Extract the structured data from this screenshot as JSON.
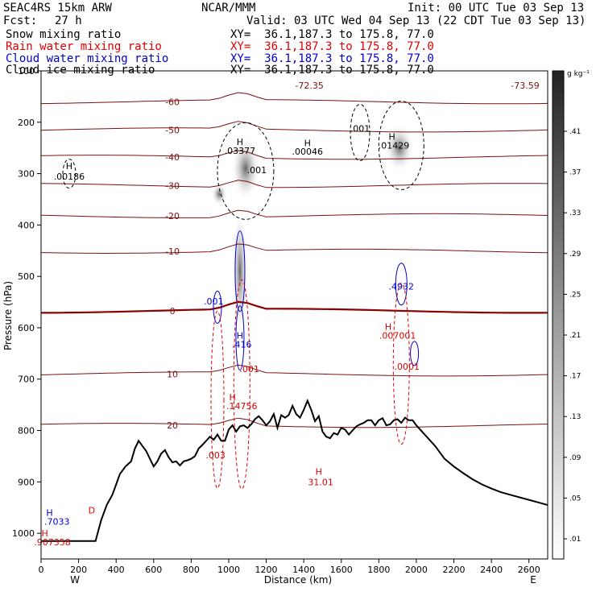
{
  "header": {
    "model": "SEAC4RS 15km ARW",
    "center": "NCAR/MMM",
    "init": "Init: 00 UTC Tue 03 Sep 13",
    "fcst_label": "Fcst:",
    "fcst_value": "27 h",
    "valid": "Valid: 03 UTC Wed 04 Sep 13 (22 CDT Tue 03 Sep 13)",
    "fields": [
      {
        "name": "Snow mixing ratio",
        "xy": "XY=  36.1,187.3 to 175.8, 77.0",
        "color": "#000000"
      },
      {
        "name": "Rain water mixing ratio",
        "xy": "XY=  36.1,187.3 to 175.8, 77.0",
        "color": "#e00000"
      },
      {
        "name": "Cloud water mixing ratio",
        "xy": "XY=  36.1,187.3 to 175.8, 77.0",
        "color": "#0000c8"
      },
      {
        "name": "Cloud ice mixing ratio",
        "xy": "XY=  36.1,187.3 to 175.8, 77.0",
        "color": "#000000"
      }
    ]
  },
  "colors": {
    "temperature": "#7a1010",
    "freezing_line": "#8b0000",
    "rain": "#e00000",
    "cloud_water": "#0000c8",
    "terrain": "#000000"
  },
  "chart_data": {
    "type": "line",
    "xlabel": "Distance (km)",
    "ylabel": "Pressure (hPa)",
    "xlim": [
      0,
      2700
    ],
    "ylim": [
      1050,
      100
    ],
    "xticks": [
      "0",
      "200",
      "400",
      "600",
      "800",
      "1000",
      "1200",
      "1400",
      "1600",
      "1800",
      "2000",
      "2200",
      "2400",
      "2600"
    ],
    "yticks": [
      "1000",
      "900",
      "800",
      "700",
      "600",
      "500",
      "400",
      "300",
      "200",
      "100"
    ],
    "x_end_labels": {
      "left": "W",
      "right": "E"
    },
    "colorbar": {
      "unit": "g kg⁻¹",
      "ticks": [
        ".41",
        ".37",
        ".33",
        ".29",
        ".25",
        ".21",
        ".17",
        ".13",
        ".09",
        ".05",
        ".01"
      ]
    },
    "terrain": {
      "x": [
        0,
        50,
        100,
        150,
        200,
        250,
        290,
        320,
        350,
        380,
        400,
        420,
        450,
        480,
        500,
        520,
        540,
        560,
        580,
        600,
        620,
        640,
        660,
        680,
        700,
        720,
        740,
        760,
        780,
        800,
        820,
        840,
        860,
        880,
        900,
        920,
        940,
        960,
        980,
        1000,
        1020,
        1040,
        1060,
        1080,
        1100,
        1120,
        1140,
        1160,
        1180,
        1200,
        1220,
        1240,
        1260,
        1280,
        1300,
        1320,
        1340,
        1360,
        1380,
        1400,
        1420,
        1440,
        1460,
        1480,
        1500,
        1520,
        1540,
        1560,
        1580,
        1600,
        1620,
        1640,
        1660,
        1680,
        1700,
        1720,
        1740,
        1760,
        1780,
        1800,
        1820,
        1840,
        1860,
        1880,
        1900,
        1920,
        1940,
        1960,
        1980,
        2000,
        2050,
        2100,
        2150,
        2200,
        2250,
        2300,
        2350,
        2400,
        2450,
        2500,
        2550,
        2600,
        2650,
        2700
      ],
      "p": [
        1015,
        1015,
        1015,
        1015,
        1015,
        1015,
        1015,
        975,
        945,
        925,
        905,
        885,
        870,
        860,
        835,
        820,
        830,
        840,
        855,
        870,
        860,
        845,
        838,
        852,
        862,
        860,
        868,
        860,
        858,
        855,
        850,
        835,
        828,
        820,
        812,
        818,
        808,
        820,
        820,
        798,
        790,
        802,
        792,
        790,
        795,
        788,
        778,
        772,
        780,
        790,
        782,
        768,
        795,
        770,
        775,
        770,
        752,
        768,
        775,
        760,
        742,
        760,
        782,
        772,
        802,
        812,
        815,
        805,
        808,
        795,
        798,
        808,
        800,
        792,
        788,
        785,
        780,
        780,
        790,
        780,
        776,
        790,
        788,
        780,
        778,
        785,
        775,
        780,
        780,
        790,
        810,
        830,
        855,
        870,
        883,
        895,
        905,
        913,
        920,
        925,
        930,
        935,
        940,
        945
      ]
    },
    "temperature_levels": [
      {
        "label": "-72.35",
        "p": 128
      },
      {
        "label": "-73.59",
        "p": 128
      },
      {
        "label": "-60",
        "p": 160
      },
      {
        "label": "-50",
        "p": 215
      },
      {
        "label": "-40",
        "p": 268
      },
      {
        "label": "-30",
        "p": 323
      },
      {
        "label": "-20",
        "p": 382
      },
      {
        "label": "-10",
        "p": 451
      },
      {
        "label": "0",
        "p": 567
      },
      {
        "label": "10",
        "p": 690
      },
      {
        "label": "20",
        "p": 790
      }
    ],
    "labels": [
      {
        "text": "H",
        "x": 150,
        "p": 285,
        "color": "#000000"
      },
      {
        "text": ".00186",
        "x": 150,
        "p": 305,
        "color": "#000000"
      },
      {
        "text": "H",
        "x": 1060,
        "p": 238,
        "color": "#000000"
      },
      {
        "text": ".03377",
        "x": 1060,
        "p": 255,
        "color": "#000000"
      },
      {
        "text": "H",
        "x": 1420,
        "p": 240,
        "color": "#000000"
      },
      {
        "text": ".00046",
        "x": 1420,
        "p": 257,
        "color": "#000000"
      },
      {
        "text": "H",
        "x": 1870,
        "p": 228,
        "color": "#000000"
      },
      {
        "text": ".01429",
        "x": 1880,
        "p": 245,
        "color": "#000000"
      },
      {
        "text": ".001",
        "x": 1150,
        "p": 293,
        "color": "#000000"
      },
      {
        "text": ".001",
        "x": 1700,
        "p": 212,
        "color": "#000000"
      },
      {
        "text": ".001",
        "x": 920,
        "p": 548,
        "color": "#0000c8"
      },
      {
        "text": "H",
        "x": 1060,
        "p": 615,
        "color": "#0000c8"
      },
      {
        "text": ".416",
        "x": 1070,
        "p": 632,
        "color": "#0000c8"
      },
      {
        "text": ".001",
        "x": 1110,
        "p": 680,
        "color": "#e00000"
      },
      {
        "text": "H",
        "x": 1020,
        "p": 735,
        "color": "#e00000"
      },
      {
        "text": ".14756",
        "x": 1070,
        "p": 752,
        "color": "#e00000"
      },
      {
        "text": ".003",
        "x": 930,
        "p": 848,
        "color": "#e00000"
      },
      {
        "text": ".4932",
        "x": 1920,
        "p": 519,
        "color": "#0000c8"
      },
      {
        "text": "H",
        "x": 1850,
        "p": 598,
        "color": "#e00000"
      },
      {
        "text": ".007001",
        "x": 1900,
        "p": 615,
        "color": "#e00000"
      },
      {
        "text": ".0001",
        "x": 1950,
        "p": 675,
        "color": "#e00000"
      },
      {
        "text": "H",
        "x": 1480,
        "p": 880,
        "color": "#e00000"
      },
      {
        "text": "31.01",
        "x": 1490,
        "p": 900,
        "color": "#e00000"
      },
      {
        "text": "H",
        "x": 45,
        "p": 960,
        "color": "#0000c8"
      },
      {
        "text": ".7033",
        "x": 85,
        "p": 977,
        "color": "#0000c8"
      },
      {
        "text": "H",
        "x": 20,
        "p": 1000,
        "color": "#e00000"
      },
      {
        "text": ".907358",
        "x": 60,
        "p": 1017,
        "color": "#e00000"
      },
      {
        "text": "D",
        "x": 270,
        "p": 955,
        "color": "#e00000"
      }
    ]
  }
}
